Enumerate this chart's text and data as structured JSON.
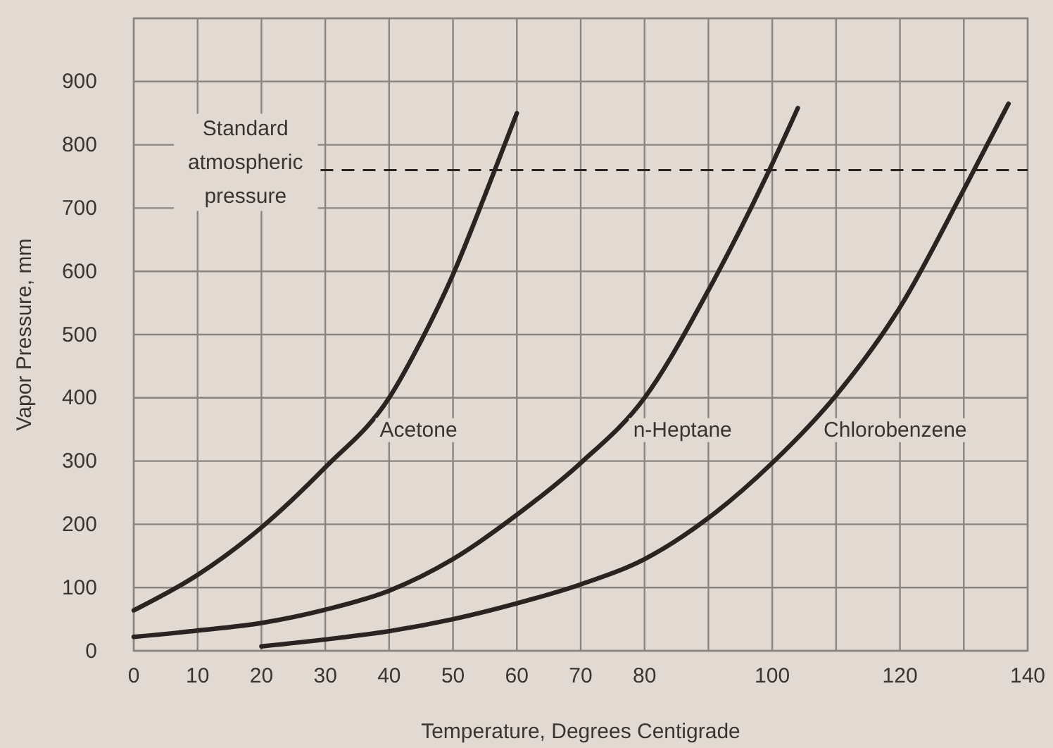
{
  "chart_data": {
    "type": "line",
    "xlabel": "Temperature, Degrees Centigrade",
    "ylabel": "Vapor Pressure, mm",
    "xlim": [
      0,
      140
    ],
    "ylim": [
      0,
      1000
    ],
    "xticks": [
      0,
      10,
      20,
      30,
      40,
      50,
      60,
      70,
      80,
      {
        "value": 90,
        "label": null
      },
      100,
      {
        "value": 110,
        "label": null
      },
      120,
      {
        "value": 130,
        "label": null
      },
      140
    ],
    "yticks": [
      0,
      100,
      200,
      300,
      400,
      500,
      600,
      700,
      800,
      900,
      {
        "value": 1000,
        "label": null
      }
    ],
    "grid": true,
    "marker": "none",
    "line_style": "solid",
    "series": [
      {
        "name": "Acetone",
        "color": "#2b2321",
        "x": [
          0,
          10,
          20,
          30,
          40,
          45,
          50,
          55,
          60
        ],
        "values": [
          64,
          120,
          195,
          290,
          400,
          490,
          595,
          720,
          850
        ]
      },
      {
        "name": "n-Heptane",
        "color": "#2b2321",
        "x": [
          0,
          10,
          20,
          30,
          40,
          50,
          60,
          70,
          80,
          90,
          100,
          104
        ],
        "values": [
          22,
          32,
          44,
          65,
          95,
          145,
          215,
          297,
          400,
          570,
          770,
          858
        ]
      },
      {
        "name": "Chlorobenzene",
        "color": "#2b2321",
        "x": [
          20,
          30,
          40,
          50,
          60,
          70,
          80,
          90,
          100,
          110,
          120,
          130,
          137
        ],
        "values": [
          7,
          18,
          31,
          50,
          75,
          105,
          145,
          210,
          297,
          404,
          543,
          729,
          865
        ]
      }
    ],
    "ref_lines": [
      {
        "axis": "y",
        "value": 760,
        "label": "Standard atmospheric pressure",
        "color": "#2b2321",
        "line_style": "dashed"
      }
    ]
  }
}
